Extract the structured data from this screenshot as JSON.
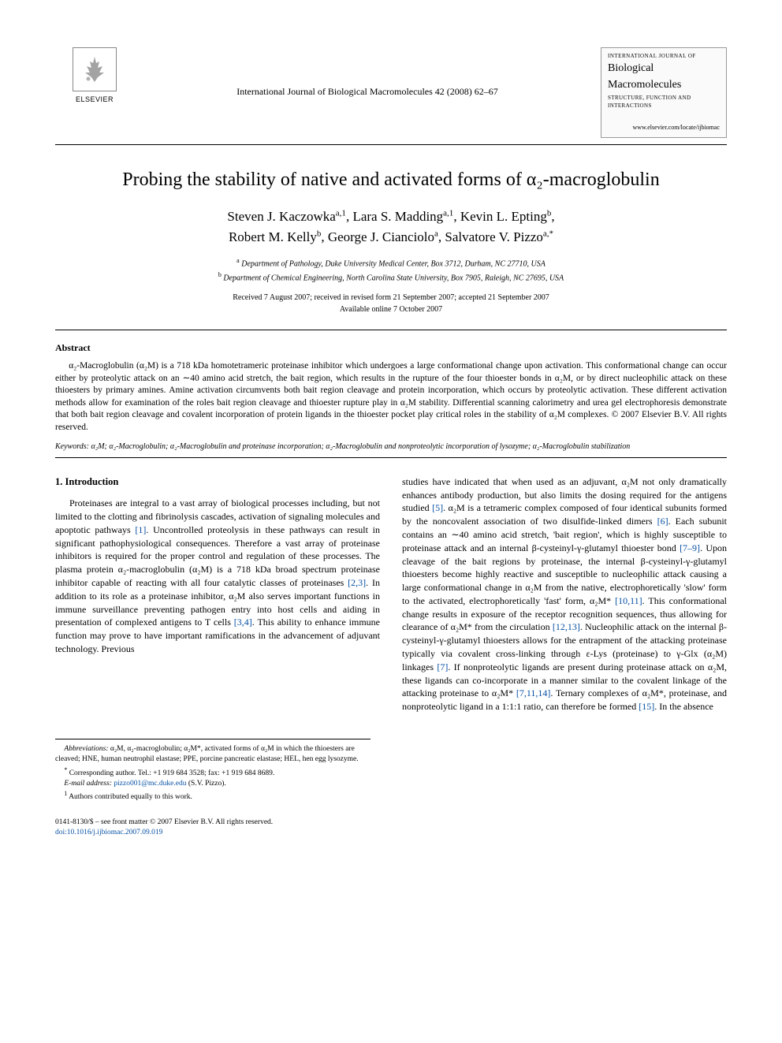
{
  "publisher": {
    "name": "ELSEVIER",
    "logo_alt": "tree"
  },
  "journal_ref": "International Journal of Biological Macromolecules 42 (2008) 62–67",
  "journal_box": {
    "line1": "INTERNATIONAL JOURNAL OF",
    "title1": "Biological",
    "title2": "Macromolecules",
    "sub": "STRUCTURE, FUNCTION AND INTERACTIONS",
    "url": "www.elsevier.com/locate/ijbiomac"
  },
  "title": "Probing the stability of native and activated forms of α₂-macroglobulin",
  "authors_line1": "Steven J. Kaczowka",
  "authors_sup1": "a,1",
  "authors_line1b": ", Lara S. Madding",
  "authors_sup1b": "a,1",
  "authors_line1c": ", Kevin L. Epting",
  "authors_sup1c": "b",
  "authors_line1d": ",",
  "authors_line2a": "Robert M. Kelly",
  "authors_sup2a": "b",
  "authors_line2b": ", George J. Cianciolo",
  "authors_sup2b": "a",
  "authors_line2c": ", Salvatore V. Pizzo",
  "authors_sup2c": "a,*",
  "affil_a_sup": "a",
  "affil_a": " Department of Pathology, Duke University Medical Center, Box 3712, Durham, NC 27710, USA",
  "affil_b_sup": "b",
  "affil_b": " Department of Chemical Engineering, North Carolina State University, Box 7905, Raleigh, NC 27695, USA",
  "dates_line1": "Received 7 August 2007; received in revised form 21 September 2007; accepted 21 September 2007",
  "dates_line2": "Available online 7 October 2007",
  "abstract_label": "Abstract",
  "abstract_text": "α₂-Macroglobulin (α₂M) is a 718 kDa homotetrameric proteinase inhibitor which undergoes a large conformational change upon activation. This conformational change can occur either by proteolytic attack on an ∼40 amino acid stretch, the bait region, which results in the rupture of the four thioester bonds in α₂M, or by direct nucleophilic attack on these thioesters by primary amines. Amine activation circumvents both bait region cleavage and protein incorporation, which occurs by proteolytic activation. These different activation methods allow for examination of the roles bait region cleavage and thioester rupture play in α₂M stability. Differential scanning calorimetry and urea gel electrophoresis demonstrate that both bait region cleavage and covalent incorporation of protein ligands in the thioester pocket play critical roles in the stability of α₂M complexes. © 2007 Elsevier B.V. All rights reserved.",
  "keywords_label": "Keywords:",
  "keywords_text": "  α₂M; α₂-Macroglobulin; α₂-Macroglobulin and proteinase incorporation; α₂-Macroglobulin and nonproteolytic incorporation of lysozyme; α₂-Macroglobulin stabilization",
  "section1_head": "1. Introduction",
  "col1_para": "Proteinases are integral to a vast array of biological processes including, but not limited to the clotting and fibrinolysis cascades, activation of signaling molecules and apoptotic pathways [1]. Uncontrolled proteolysis in these pathways can result in significant pathophysiological consequences. Therefore a vast array of proteinase inhibitors is required for the proper control and regulation of these processes. The plasma protein α₂-macroglobulin (α₂M) is a 718 kDa broad spectrum proteinase inhibitor capable of reacting with all four catalytic classes of proteinases [2,3]. In addition to its role as a proteinase inhibitor, α₂M also serves important functions in immune surveillance preventing pathogen entry into host cells and aiding in presentation of complexed antigens to T cells [3,4]. This ability to enhance immune function may prove to have important ramifications in the advancement of adjuvant technology. Previous",
  "col2_para": "studies have indicated that when used as an adjuvant, α₂M not only dramatically enhances antibody production, but also limits the dosing required for the antigens studied [5]. α₂M is a tetrameric complex composed of four identical subunits formed by the noncovalent association of two disulfide-linked dimers [6]. Each subunit contains an ∼40 amino acid stretch, 'bait region', which is highly susceptible to proteinase attack and an internal β-cysteinyl-γ-glutamyl thioester bond [7–9]. Upon cleavage of the bait regions by proteinase, the internal β-cysteinyl-γ-glutamyl thioesters become highly reactive and susceptible to nucleophilic attack causing a large conformational change in α₂M from the native, electrophoretically 'slow' form to the activated, electrophoretically 'fast' form, α₂M* [10,11]. This conformational change results in exposure of the receptor recognition sequences, thus allowing for clearance of α₂M* from the circulation [12,13]. Nucleophilic attack on the internal β-cysteinyl-γ-glutamyl thioesters allows for the entrapment of the attacking proteinase typically via covalent cross-linking through ε-Lys (proteinase) to γ-Glx (α₂M) linkages [7]. If nonproteolytic ligands are present during proteinase attack on α₂M, these ligands can co-incorporate in a manner similar to the covalent linkage of the attacking proteinase to α₂M* [7,11,14]. Ternary complexes of α₂M*, proteinase, and nonproteolytic ligand in a 1:1:1 ratio, can therefore be formed [15]. In the absence",
  "footnotes": {
    "abbrev_label": "Abbreviations:",
    "abbrev_text": " α₂M, α₂-macroglobulin; α₂M*, activated forms of α₂M in which the thioesters are cleaved; HNE, human neutrophil elastase; PPE, porcine pancreatic elastase; HEL, hen egg lysozyme.",
    "corr_label": "*",
    "corr_text": " Corresponding author. Tel.: +1 919 684 3528; fax: +1 919 684 8689.",
    "email_label": "E-mail address:",
    "email": " pizzo001@mc.duke.edu",
    "email_tail": " (S.V. Pizzo).",
    "equal_label": "1",
    "equal_text": " Authors contributed equally to this work."
  },
  "footer": {
    "line1": "0141-8130/$ – see front matter © 2007 Elsevier B.V. All rights reserved.",
    "doi": "doi:10.1016/j.ijbiomac.2007.09.019"
  },
  "colors": {
    "link": "#0650a4",
    "text": "#000000",
    "bg": "#ffffff"
  }
}
